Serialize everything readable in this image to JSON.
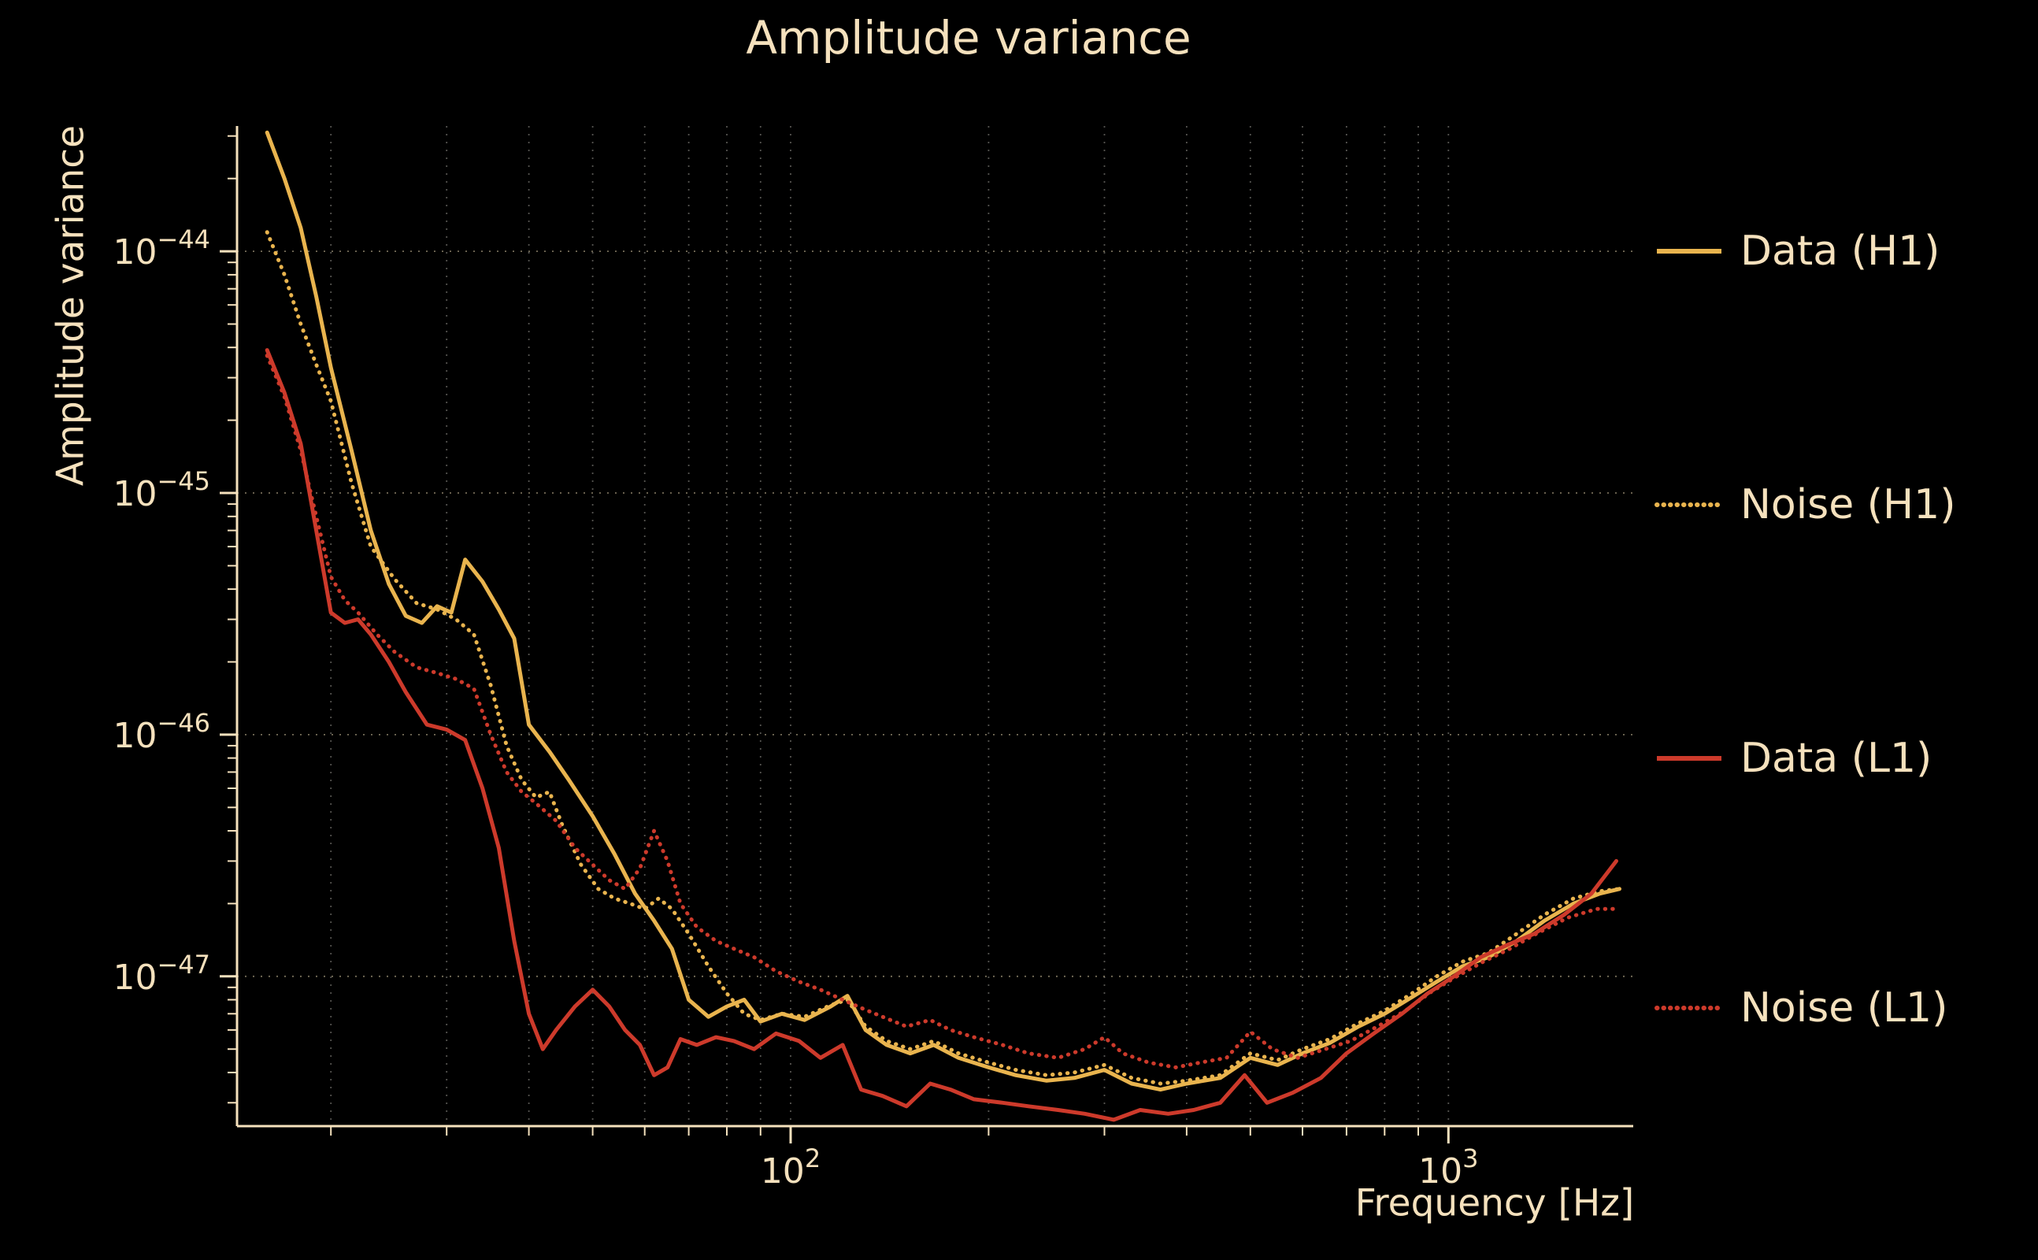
{
  "chart_data": {
    "type": "line",
    "title": "Amplitude variance",
    "xlabel": "Frequency [Hz]",
    "ylabel": "Amplitude variance",
    "x_scale": "log",
    "y_scale": "log",
    "xlim": [
      14.4,
      1910
    ],
    "ylim": [
      2.4e-48,
      3.3e-44
    ],
    "x_tick_exponents": [
      2,
      3
    ],
    "y_tick_exponents": [
      -44,
      -45,
      -46,
      -47
    ],
    "grid": true,
    "legend_position": "right-outside",
    "colors": {
      "background": "#000000",
      "text": "#f5e1bd",
      "grid_vertical": "#9a9890",
      "grid_horizontal": "#d8c9a3",
      "h1": "#e9b44e",
      "l1": "#cd3a2b"
    },
    "series": [
      {
        "name": "Data (H1)",
        "color": "#e9b44e",
        "style": "solid",
        "points": [
          [
            16,
            3.1e-44
          ],
          [
            17,
            2e-44
          ],
          [
            18,
            1.25e-44
          ],
          [
            19,
            6.5e-45
          ],
          [
            20,
            3.3e-45
          ],
          [
            21.5,
            1.5e-45
          ],
          [
            23,
            7e-46
          ],
          [
            24.5,
            4.2e-46
          ],
          [
            26,
            3.1e-46
          ],
          [
            27.5,
            2.9e-46
          ],
          [
            29,
            3.4e-46
          ],
          [
            30.5,
            3.2e-46
          ],
          [
            32,
            5.3e-46
          ],
          [
            34,
            4.3e-46
          ],
          [
            36,
            3.3e-46
          ],
          [
            38,
            2.5e-46
          ],
          [
            40,
            1.1e-46
          ],
          [
            43,
            8.5e-47
          ],
          [
            46,
            6.5e-47
          ],
          [
            50,
            4.6e-47
          ],
          [
            54,
            3.2e-47
          ],
          [
            58,
            2.2e-47
          ],
          [
            62,
            1.7e-47
          ],
          [
            66,
            1.3e-47
          ],
          [
            70,
            8e-48
          ],
          [
            75,
            6.8e-48
          ],
          [
            80,
            7.5e-48
          ],
          [
            85,
            8e-48
          ],
          [
            90,
            6.5e-48
          ],
          [
            97,
            7e-48
          ],
          [
            105,
            6.6e-48
          ],
          [
            115,
            7.5e-48
          ],
          [
            122,
            8.3e-48
          ],
          [
            130,
            6e-48
          ],
          [
            140,
            5.2e-48
          ],
          [
            152,
            4.8e-48
          ],
          [
            165,
            5.2e-48
          ],
          [
            180,
            4.6e-48
          ],
          [
            200,
            4.2e-48
          ],
          [
            220,
            3.9e-48
          ],
          [
            245,
            3.7e-48
          ],
          [
            270,
            3.8e-48
          ],
          [
            300,
            4.1e-48
          ],
          [
            330,
            3.6e-48
          ],
          [
            365,
            3.4e-48
          ],
          [
            400,
            3.6e-48
          ],
          [
            450,
            3.8e-48
          ],
          [
            500,
            4.6e-48
          ],
          [
            550,
            4.3e-48
          ],
          [
            600,
            4.8e-48
          ],
          [
            660,
            5.3e-48
          ],
          [
            730,
            6.2e-48
          ],
          [
            800,
            7e-48
          ],
          [
            880,
            8.2e-48
          ],
          [
            960,
            9.5e-48
          ],
          [
            1050,
            1.1e-47
          ],
          [
            1150,
            1.2e-47
          ],
          [
            1270,
            1.4e-47
          ],
          [
            1400,
            1.7e-47
          ],
          [
            1550,
            2e-47
          ],
          [
            1700,
            2.2e-47
          ],
          [
            1820,
            2.3e-47
          ]
        ]
      },
      {
        "name": "Noise (H1)",
        "color": "#e9b44e",
        "style": "dotted",
        "points": [
          [
            16,
            1.2e-44
          ],
          [
            17,
            8e-45
          ],
          [
            18,
            5e-45
          ],
          [
            19,
            3.4e-45
          ],
          [
            20,
            2.4e-45
          ],
          [
            21.5,
            1.1e-45
          ],
          [
            23,
            6e-46
          ],
          [
            25,
            4.4e-46
          ],
          [
            27,
            3.5e-46
          ],
          [
            29,
            3.3e-46
          ],
          [
            31,
            3e-46
          ],
          [
            33,
            2.6e-46
          ],
          [
            35,
            1.6e-46
          ],
          [
            37,
            9e-47
          ],
          [
            39,
            6.5e-47
          ],
          [
            41,
            5.5e-47
          ],
          [
            43,
            5.8e-47
          ],
          [
            45,
            4.2e-47
          ],
          [
            48,
            2.9e-47
          ],
          [
            51,
            2.3e-47
          ],
          [
            54,
            2.1e-47
          ],
          [
            57,
            2e-47
          ],
          [
            60,
            1.9e-47
          ],
          [
            63,
            2.1e-47
          ],
          [
            66,
            1.9e-47
          ],
          [
            70,
            1.5e-47
          ],
          [
            75,
            1.1e-47
          ],
          [
            80,
            8.5e-48
          ],
          [
            85,
            7e-48
          ],
          [
            90,
            6.6e-48
          ],
          [
            97,
            7e-48
          ],
          [
            105,
            6.8e-48
          ],
          [
            115,
            7.6e-48
          ],
          [
            122,
            8e-48
          ],
          [
            130,
            6.2e-48
          ],
          [
            140,
            5.4e-48
          ],
          [
            152,
            5e-48
          ],
          [
            165,
            5.4e-48
          ],
          [
            180,
            4.8e-48
          ],
          [
            200,
            4.4e-48
          ],
          [
            220,
            4.1e-48
          ],
          [
            245,
            3.9e-48
          ],
          [
            270,
            4e-48
          ],
          [
            300,
            4.3e-48
          ],
          [
            330,
            3.8e-48
          ],
          [
            365,
            3.6e-48
          ],
          [
            400,
            3.7e-48
          ],
          [
            450,
            3.9e-48
          ],
          [
            500,
            4.8e-48
          ],
          [
            550,
            4.5e-48
          ],
          [
            600,
            5e-48
          ],
          [
            660,
            5.5e-48
          ],
          [
            730,
            6.4e-48
          ],
          [
            800,
            7.2e-48
          ],
          [
            880,
            8.5e-48
          ],
          [
            960,
            1e-47
          ],
          [
            1050,
            1.15e-47
          ],
          [
            1150,
            1.25e-47
          ],
          [
            1270,
            1.5e-47
          ],
          [
            1400,
            1.8e-47
          ],
          [
            1550,
            2.1e-47
          ],
          [
            1700,
            2.25e-47
          ],
          [
            1820,
            2.3e-47
          ]
        ]
      },
      {
        "name": "Data (L1)",
        "color": "#cd3a2b",
        "style": "solid",
        "points": [
          [
            16,
            3.9e-45
          ],
          [
            17,
            2.6e-45
          ],
          [
            18,
            1.6e-45
          ],
          [
            19,
            7e-46
          ],
          [
            20,
            3.2e-46
          ],
          [
            21,
            2.9e-46
          ],
          [
            22,
            3e-46
          ],
          [
            23,
            2.6e-46
          ],
          [
            24.5,
            2e-46
          ],
          [
            26,
            1.5e-46
          ],
          [
            28,
            1.1e-46
          ],
          [
            30,
            1.05e-46
          ],
          [
            32,
            9.5e-47
          ],
          [
            34,
            6e-47
          ],
          [
            36,
            3.4e-47
          ],
          [
            38,
            1.4e-47
          ],
          [
            40,
            7e-48
          ],
          [
            42,
            5e-48
          ],
          [
            44,
            6e-48
          ],
          [
            47,
            7.5e-48
          ],
          [
            50,
            8.8e-48
          ],
          [
            53,
            7.5e-48
          ],
          [
            56,
            6e-48
          ],
          [
            59,
            5.2e-48
          ],
          [
            62,
            3.9e-48
          ],
          [
            65,
            4.2e-48
          ],
          [
            68,
            5.5e-48
          ],
          [
            72,
            5.2e-48
          ],
          [
            77,
            5.6e-48
          ],
          [
            82,
            5.4e-48
          ],
          [
            88,
            5e-48
          ],
          [
            95,
            5.8e-48
          ],
          [
            103,
            5.4e-48
          ],
          [
            111,
            4.6e-48
          ],
          [
            120,
            5.2e-48
          ],
          [
            128,
            3.4e-48
          ],
          [
            138,
            3.2e-48
          ],
          [
            150,
            2.9e-48
          ],
          [
            163,
            3.6e-48
          ],
          [
            175,
            3.4e-48
          ],
          [
            190,
            3.1e-48
          ],
          [
            210,
            3e-48
          ],
          [
            230,
            2.9e-48
          ],
          [
            255,
            2.8e-48
          ],
          [
            280,
            2.7e-48
          ],
          [
            310,
            2.55e-48
          ],
          [
            340,
            2.8e-48
          ],
          [
            375,
            2.7e-48
          ],
          [
            410,
            2.8e-48
          ],
          [
            450,
            3e-48
          ],
          [
            490,
            3.9e-48
          ],
          [
            530,
            3e-48
          ],
          [
            580,
            3.3e-48
          ],
          [
            640,
            3.8e-48
          ],
          [
            700,
            4.8e-48
          ],
          [
            770,
            5.8e-48
          ],
          [
            850,
            7e-48
          ],
          [
            930,
            8.5e-48
          ],
          [
            1020,
            1e-47
          ],
          [
            1120,
            1.2e-47
          ],
          [
            1230,
            1.35e-47
          ],
          [
            1350,
            1.5e-47
          ],
          [
            1500,
            1.8e-47
          ],
          [
            1650,
            2.2e-47
          ],
          [
            1800,
            3e-47
          ]
        ]
      },
      {
        "name": "Noise (L1)",
        "color": "#cd3a2b",
        "style": "dotted",
        "points": [
          [
            16,
            3.7e-45
          ],
          [
            17,
            2.5e-45
          ],
          [
            18,
            1.5e-45
          ],
          [
            19,
            8e-46
          ],
          [
            20,
            4.5e-46
          ],
          [
            21,
            3.6e-46
          ],
          [
            22,
            3.2e-46
          ],
          [
            23.5,
            2.6e-46
          ],
          [
            25,
            2.2e-46
          ],
          [
            27,
            1.9e-46
          ],
          [
            29,
            1.8e-46
          ],
          [
            31,
            1.7e-46
          ],
          [
            33,
            1.55e-46
          ],
          [
            35,
            1e-46
          ],
          [
            37,
            7e-47
          ],
          [
            39,
            5.8e-47
          ],
          [
            41,
            5.2e-47
          ],
          [
            44,
            4.4e-47
          ],
          [
            47,
            3.4e-47
          ],
          [
            50,
            2.9e-47
          ],
          [
            53,
            2.5e-47
          ],
          [
            56,
            2.3e-47
          ],
          [
            59,
            2.8e-47
          ],
          [
            62,
            4e-47
          ],
          [
            65,
            3e-47
          ],
          [
            68,
            2e-47
          ],
          [
            72,
            1.6e-47
          ],
          [
            77,
            1.4e-47
          ],
          [
            82,
            1.3e-47
          ],
          [
            88,
            1.2e-47
          ],
          [
            95,
            1.05e-47
          ],
          [
            103,
            9.5e-48
          ],
          [
            111,
            8.8e-48
          ],
          [
            120,
            8e-48
          ],
          [
            128,
            7.4e-48
          ],
          [
            138,
            6.8e-48
          ],
          [
            150,
            6.2e-48
          ],
          [
            163,
            6.6e-48
          ],
          [
            175,
            6e-48
          ],
          [
            190,
            5.6e-48
          ],
          [
            210,
            5.2e-48
          ],
          [
            230,
            4.8e-48
          ],
          [
            255,
            4.6e-48
          ],
          [
            280,
            5e-48
          ],
          [
            300,
            5.6e-48
          ],
          [
            320,
            4.8e-48
          ],
          [
            350,
            4.4e-48
          ],
          [
            385,
            4.2e-48
          ],
          [
            420,
            4.4e-48
          ],
          [
            460,
            4.6e-48
          ],
          [
            500,
            5.9e-48
          ],
          [
            540,
            5e-48
          ],
          [
            590,
            4.6e-48
          ],
          [
            650,
            5e-48
          ],
          [
            710,
            5.4e-48
          ],
          [
            780,
            6.2e-48
          ],
          [
            860,
            7.2e-48
          ],
          [
            940,
            8.6e-48
          ],
          [
            1030,
            1e-47
          ],
          [
            1130,
            1.15e-47
          ],
          [
            1240,
            1.3e-47
          ],
          [
            1360,
            1.5e-47
          ],
          [
            1520,
            1.75e-47
          ],
          [
            1680,
            1.9e-47
          ],
          [
            1820,
            1.9e-47
          ]
        ]
      }
    ]
  }
}
